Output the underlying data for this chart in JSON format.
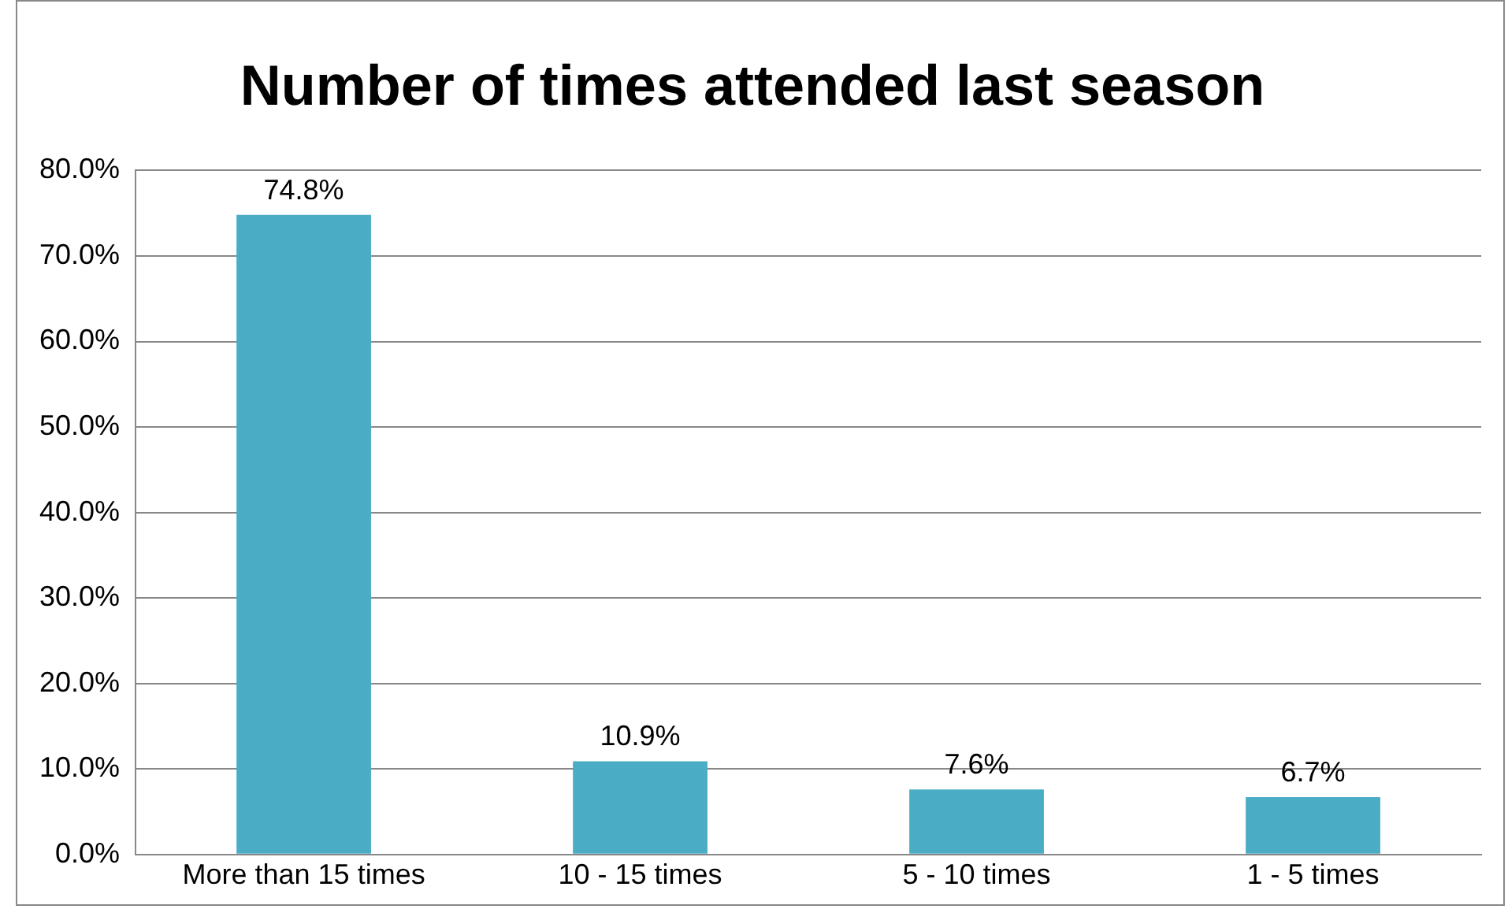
{
  "chart_data": {
    "type": "bar",
    "title": "Number of times attended last season",
    "categories": [
      "More than 15 times",
      "10 - 15 times",
      "5 - 10 times",
      "1 - 5 times"
    ],
    "values": [
      74.8,
      10.9,
      7.6,
      6.7
    ],
    "color": "#4bacc6",
    "value_labels": [
      "74.8%",
      "10.9%",
      "7.6%",
      "6.7%"
    ],
    "ylim": [
      0,
      80
    ],
    "yticks": [
      {
        "value": 0,
        "label": "0.0%"
      },
      {
        "value": 10,
        "label": "10.0%"
      },
      {
        "value": 20,
        "label": "20.0%"
      },
      {
        "value": 30,
        "label": "30.0%"
      },
      {
        "value": 40,
        "label": "40.0%"
      },
      {
        "value": 50,
        "label": "50.0%"
      },
      {
        "value": 60,
        "label": "60.0%"
      },
      {
        "value": 70,
        "label": "70.0%"
      },
      {
        "value": 80,
        "label": "80.0%"
      }
    ],
    "grid": "y",
    "legend": false
  }
}
